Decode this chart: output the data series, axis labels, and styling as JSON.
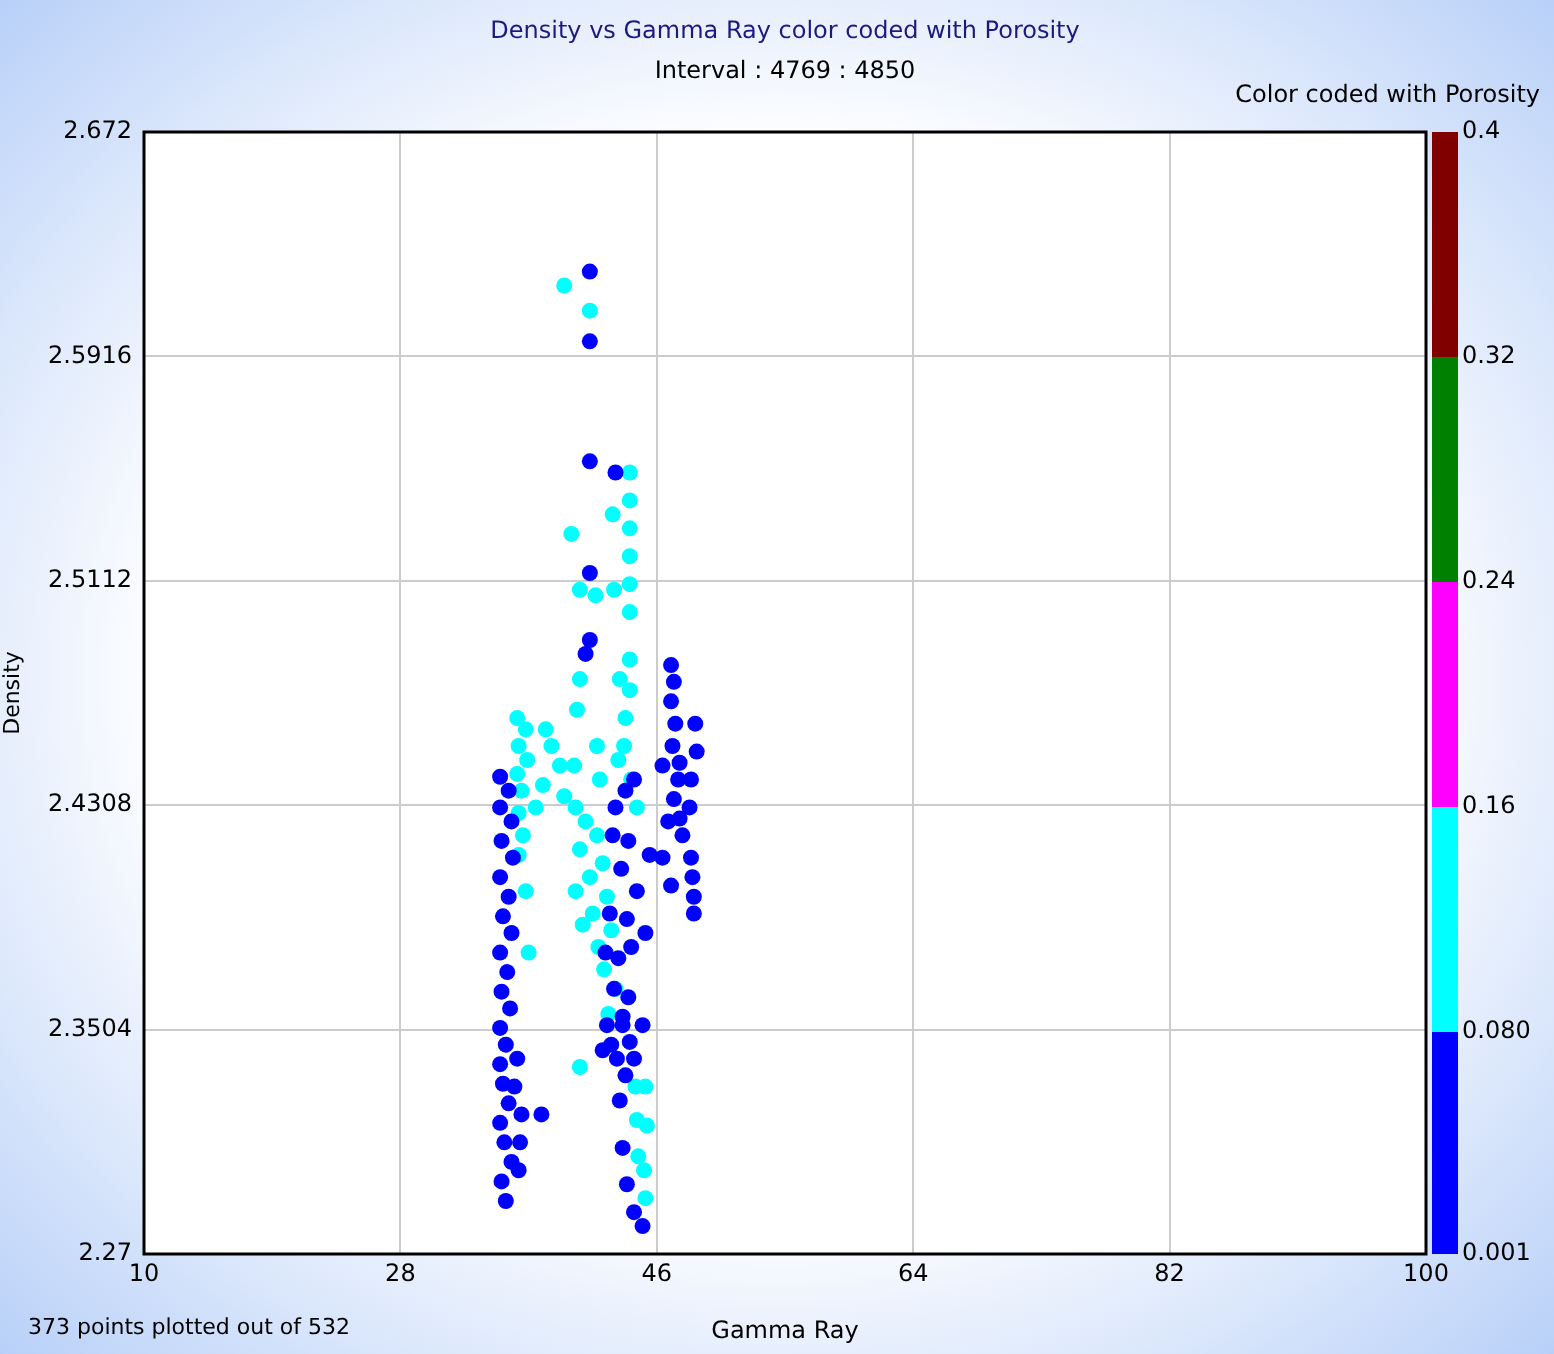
{
  "chart_data": {
    "type": "scatter",
    "title": "Density vs Gamma Ray color coded with Porosity",
    "subtitle": "Interval : 4769 : 4850",
    "xlabel": "Gamma Ray",
    "ylabel": "Density",
    "clabel": "Color coded with Porosity",
    "annotations": [
      "373 points plotted out of 532"
    ],
    "xlim": [
      10,
      100
    ],
    "xticks": [
      10,
      28,
      46,
      64,
      82,
      100
    ],
    "ylim": [
      2.27,
      2.672
    ],
    "yticks": [
      2.27,
      2.3504,
      2.4308,
      2.5112,
      2.5916,
      2.672
    ],
    "clim": [
      0.001,
      0.4
    ],
    "cticks": [
      0.001,
      {
        "value": 0.08,
        "label": "0.080"
      },
      0.16,
      0.24,
      0.32,
      0.4
    ],
    "grid": true,
    "marker": "circle",
    "legend": false,
    "series": [
      {
        "color": "#0000ff",
        "x": [
          35.0,
          35.6,
          35.0,
          35.8,
          35.1,
          35.9,
          35.0,
          35.6,
          35.2,
          35.8,
          35.0,
          35.5,
          35.1,
          35.7,
          35.0,
          35.4,
          35.0,
          35.2,
          35.6,
          35.0,
          35.3,
          35.8,
          35.1,
          35.4,
          36.2,
          36.5,
          36.3,
          36.0,
          36.4,
          41.3,
          41.3,
          41.3,
          43.1,
          41.3,
          41.3,
          41.0,
          43.1,
          43.8,
          44.4,
          42.9,
          44.0,
          43.5,
          44.6,
          42.7,
          43.9,
          42.4,
          43.3,
          44.2,
          43.0,
          44.0,
          42.5,
          43.6,
          42.8,
          45.2,
          45.5,
          46.4,
          46.8,
          47.0,
          47.2,
          47.0,
          47.3,
          47.1,
          46.4,
          47.5,
          47.2,
          47.6,
          47.8,
          48.3,
          48.4,
          48.5,
          48.6,
          48.6,
          47.0,
          48.4,
          48.8,
          48.7,
          47.6,
          43.6,
          44.1,
          44.4,
          45.0,
          43.2,
          43.8,
          43.4,
          43.6,
          43.9,
          44.4,
          45.0,
          42.2,
          37.9
        ],
        "values": [
          2.441,
          2.436,
          2.43,
          2.425,
          2.418,
          2.412,
          2.405,
          2.398,
          2.391,
          2.385,
          2.378,
          2.371,
          2.364,
          2.358,
          2.351,
          2.345,
          2.338,
          2.331,
          2.324,
          2.317,
          2.31,
          2.303,
          2.296,
          2.289,
          2.34,
          2.32,
          2.3,
          2.33,
          2.31,
          2.622,
          2.597,
          2.554,
          2.55,
          2.514,
          2.49,
          2.485,
          2.43,
          2.436,
          2.44,
          2.42,
          2.418,
          2.408,
          2.4,
          2.392,
          2.39,
          2.378,
          2.376,
          2.38,
          2.365,
          2.362,
          2.352,
          2.355,
          2.345,
          2.385,
          2.413,
          2.412,
          2.425,
          2.481,
          2.475,
          2.468,
          2.46,
          2.452,
          2.445,
          2.44,
          2.433,
          2.426,
          2.42,
          2.43,
          2.412,
          2.405,
          2.398,
          2.392,
          2.402,
          2.44,
          2.45,
          2.46,
          2.446,
          2.352,
          2.346,
          2.34,
          2.352,
          2.34,
          2.334,
          2.325,
          2.308,
          2.295,
          2.285,
          2.28,
          2.343,
          2.32
        ]
      },
      {
        "color": "#00ffff",
        "x": [
          36.2,
          36.8,
          36.3,
          36.9,
          36.2,
          36.5,
          36.3,
          36.6,
          37.5,
          36.8,
          37.0,
          36.3,
          38.2,
          38.6,
          39.2,
          38.0,
          39.5,
          39.5,
          41.3,
          44.1,
          44.1,
          44.1,
          44.1,
          44.1,
          44.1,
          42.9,
          40.0,
          40.6,
          41.7,
          43.0,
          44.1,
          44.1,
          40.6,
          43.4,
          43.8,
          40.4,
          41.8,
          43.7,
          40.2,
          43.3,
          44.2,
          42.0,
          44.6,
          40.3,
          41.0,
          41.8,
          40.6,
          42.2,
          41.3,
          40.3,
          42.5,
          41.5,
          40.8,
          42.8,
          41.9,
          42.3,
          43.1,
          42.6,
          44.5,
          45.2,
          44.6,
          45.3,
          44.7,
          45.1,
          45.2,
          40.6
        ],
        "values": [
          2.462,
          2.458,
          2.452,
          2.447,
          2.442,
          2.436,
          2.428,
          2.42,
          2.43,
          2.4,
          2.378,
          2.413,
          2.458,
          2.452,
          2.445,
          2.438,
          2.434,
          2.617,
          2.608,
          2.55,
          2.54,
          2.53,
          2.52,
          2.51,
          2.5,
          2.535,
          2.528,
          2.508,
          2.506,
          2.508,
          2.483,
          2.472,
          2.476,
          2.476,
          2.462,
          2.465,
          2.452,
          2.452,
          2.445,
          2.447,
          2.44,
          2.44,
          2.43,
          2.43,
          2.425,
          2.42,
          2.415,
          2.41,
          2.405,
          2.4,
          2.398,
          2.392,
          2.388,
          2.386,
          2.38,
          2.372,
          2.365,
          2.356,
          2.33,
          2.33,
          2.318,
          2.316,
          2.305,
          2.3,
          2.29,
          2.337
        ]
      }
    ]
  }
}
